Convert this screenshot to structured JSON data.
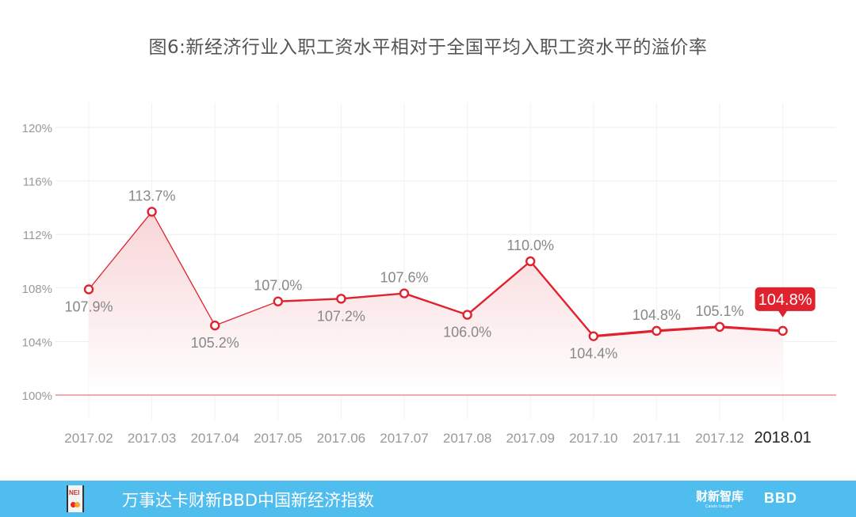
{
  "title": "图6:新经济行业入职工资水平相对于全国平均入职工资水平的溢价率",
  "colors": {
    "line": "#e0222e",
    "marker_fill": "#ffffff",
    "area_top": "#f8d3d6",
    "area_bottom": "#ffffff",
    "grid": "#eeeeee",
    "baseline": "#e57a80",
    "label": "#888888",
    "highlight_label_bg": "#e0222e",
    "highlight_label_text": "#ffffff",
    "footer_bg": "#4fbdee"
  },
  "chart_data": {
    "type": "line",
    "title": "图6:新经济行业入职工资水平相对于全国平均入职工资水平的溢价率",
    "xlabel": "",
    "ylabel": "",
    "categories": [
      "2017.02",
      "2017.03",
      "2017.04",
      "2017.05",
      "2017.06",
      "2017.07",
      "2017.08",
      "2017.09",
      "2017.10",
      "2017.11",
      "2017.12",
      "2018.01"
    ],
    "series": [
      {
        "name": "溢价率",
        "values": [
          107.9,
          113.7,
          105.2,
          107.0,
          107.2,
          107.6,
          106.0,
          110.0,
          104.4,
          104.8,
          105.1,
          104.8
        ],
        "labels": [
          "107.9%",
          "113.7%",
          "105.2%",
          "107.0%",
          "107.2%",
          "107.6%",
          "106.0%",
          "110.0%",
          "104.4%",
          "104.8%",
          "105.1%",
          "104.8%"
        ],
        "label_positions": [
          "below",
          "above",
          "below",
          "above",
          "below",
          "above",
          "below",
          "above",
          "below",
          "above",
          "above",
          "highlight"
        ]
      }
    ],
    "yticks": [
      "100%",
      "104%",
      "108%",
      "112%",
      "116%",
      "120%"
    ],
    "ytick_values": [
      100,
      104,
      108,
      112,
      116,
      120
    ],
    "ylim": [
      100,
      120
    ],
    "grid": true,
    "legend": null,
    "highlight_index": 11,
    "area_fill": true
  },
  "footer": {
    "logo_text": "NEI",
    "title": "万事达卡财新BBD中国新经济指数",
    "brand_caixin": "财新智库",
    "brand_caixin_sub": "Caixin Insight",
    "brand_bbd": "BBD"
  }
}
